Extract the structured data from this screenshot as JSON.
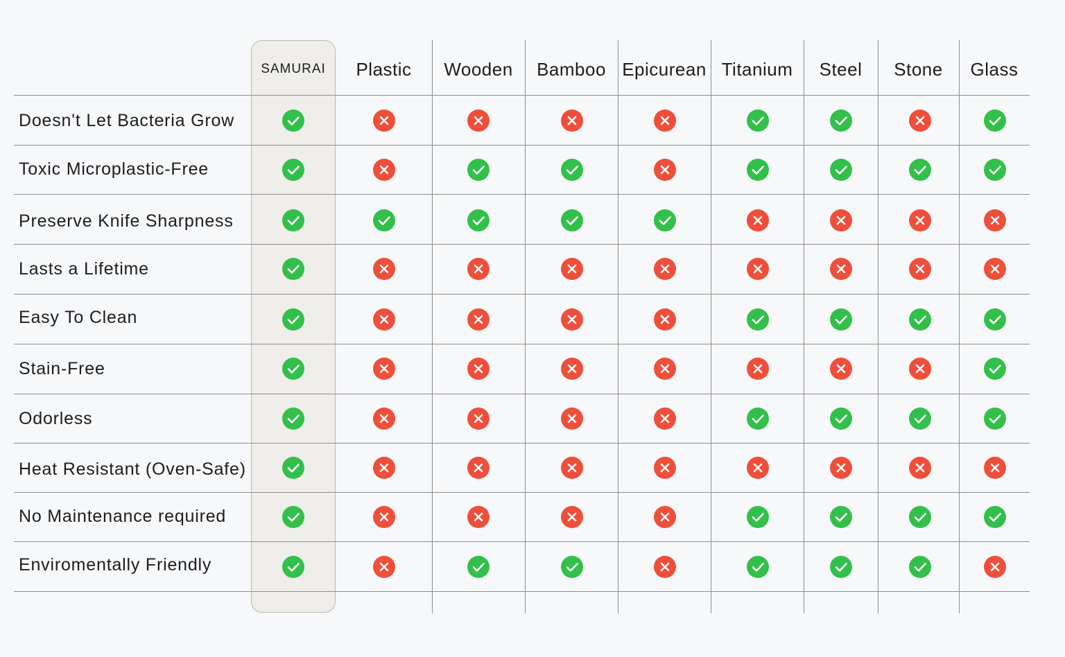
{
  "colors": {
    "check": "#32c04a",
    "cross": "#ef4f3a",
    "highlight": "#efeeeb",
    "grid": "#8e8e8e"
  },
  "columns": [
    "SAMURAI",
    "Plastic",
    "Wooden",
    "Bamboo",
    "Epicurean",
    "Titanium",
    "Steel",
    "Stone",
    "Glass"
  ],
  "rows": [
    {
      "label": "Doesn't Let Bacteria Grow",
      "marks": [
        "check",
        "cross",
        "cross",
        "cross",
        "cross",
        "check",
        "check",
        "cross",
        "check"
      ]
    },
    {
      "label": "Toxic Microplastic-Free",
      "marks": [
        "check",
        "cross",
        "check",
        "check",
        "cross",
        "check",
        "check",
        "check",
        "check"
      ]
    },
    {
      "label": "Preserve Knife Sharpness",
      "marks": [
        "check",
        "check",
        "check",
        "check",
        "check",
        "cross",
        "cross",
        "cross",
        "cross"
      ]
    },
    {
      "label": "Lasts a Lifetime",
      "marks": [
        "check",
        "cross",
        "cross",
        "cross",
        "cross",
        "cross",
        "cross",
        "cross",
        "cross"
      ]
    },
    {
      "label": "Easy To Clean",
      "marks": [
        "check",
        "cross",
        "cross",
        "cross",
        "cross",
        "check",
        "check",
        "check",
        "check"
      ]
    },
    {
      "label": "Stain-Free",
      "marks": [
        "check",
        "cross",
        "cross",
        "cross",
        "cross",
        "cross",
        "cross",
        "cross",
        "check"
      ]
    },
    {
      "label": "Odorless",
      "marks": [
        "check",
        "cross",
        "cross",
        "cross",
        "cross",
        "check",
        "check",
        "check",
        "check"
      ]
    },
    {
      "label": "Heat Resistant (Oven-Safe)",
      "marks": [
        "check",
        "cross",
        "cross",
        "cross",
        "cross",
        "cross",
        "cross",
        "cross",
        "cross"
      ]
    },
    {
      "label": "No Maintenance required",
      "marks": [
        "check",
        "cross",
        "cross",
        "cross",
        "cross",
        "check",
        "check",
        "check",
        "check"
      ]
    },
    {
      "label": "Enviromentally Friendly",
      "marks": [
        "check",
        "cross",
        "check",
        "check",
        "cross",
        "check",
        "check",
        "check",
        "cross"
      ]
    }
  ]
}
